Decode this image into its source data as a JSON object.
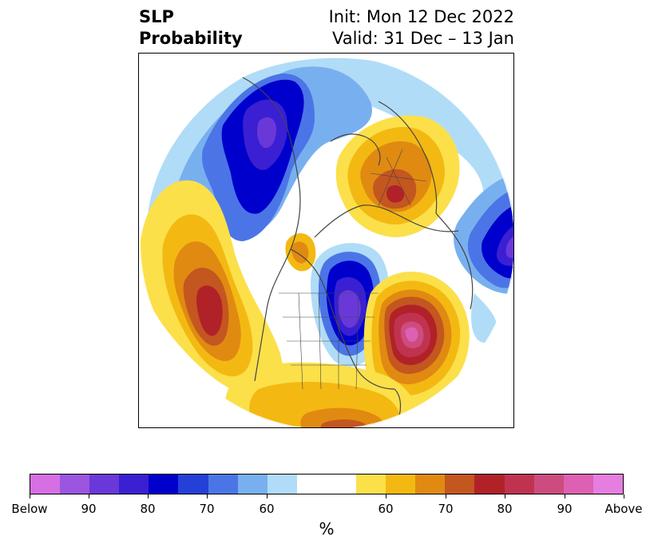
{
  "header": {
    "title_line1": "SLP",
    "title_line2": "Probability",
    "init_text": "Init: Mon 12 Dec 2022",
    "valid_text": "Valid: 31 Dec – 13 Jan"
  },
  "colorbar": {
    "unit": "%",
    "colors": [
      "#d66fe3",
      "#9b55e0",
      "#6a38d8",
      "#3a1fd3",
      "#0000cc",
      "#2540d8",
      "#4b75e6",
      "#78b0ef",
      "#b0dcf7",
      "#ffffff",
      "#ffffff",
      "#fbe04a",
      "#f3b912",
      "#e08a12",
      "#c45620",
      "#b02228",
      "#c03350",
      "#cc4c80",
      "#dd60b3",
      "#e57ee0"
    ],
    "ticks": [
      "Below",
      "90",
      "80",
      "70",
      "60",
      "60",
      "70",
      "80",
      "90",
      "Above"
    ]
  },
  "legend_colors": {
    "below_strong": "#6a38d8",
    "below_mid": "#0000cc",
    "below_weak": "#b0dcf7",
    "above_weak": "#fbe04a",
    "above_mid": "#e08a12",
    "above_strong": "#b02228",
    "above_extreme": "#d05590"
  }
}
